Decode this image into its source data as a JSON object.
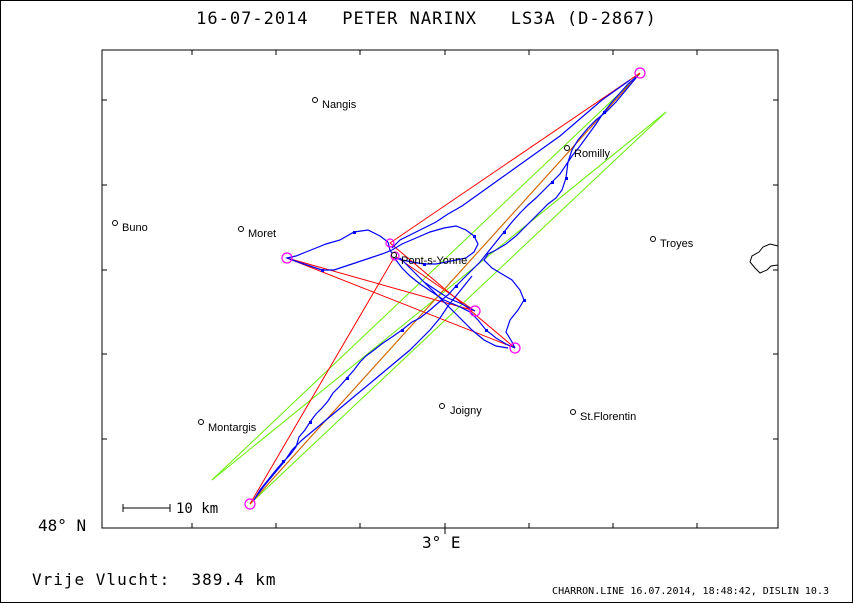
{
  "title": "16-07-2014   PETER NARINX   LS3A (D-2867)",
  "towns": [
    {
      "name": "Nangis"
    },
    {
      "name": "Romilly"
    },
    {
      "name": "Buno"
    },
    {
      "name": "Moret"
    },
    {
      "name": "Troyes"
    },
    {
      "name": "Pont-s-Yonne"
    },
    {
      "name": "Montargis"
    },
    {
      "name": "Joigny"
    },
    {
      "name": "St.Florentin"
    }
  ],
  "axes": {
    "lat_label": "48° N",
    "lon_label": "3° E"
  },
  "scale_bar": {
    "label": "10 km"
  },
  "distance": "Vrije Vlucht:  389.4 km",
  "footer": "CHARRON.LINE 16.07.2014, 18:48:42, DISLIN 10.3",
  "colors": {
    "track": "#0000ff",
    "optimized_line": "#ff0000",
    "fai_line": "#66ee00",
    "turnpoint_circle": "#ff00ff",
    "main_leg": "#cc7700"
  }
}
